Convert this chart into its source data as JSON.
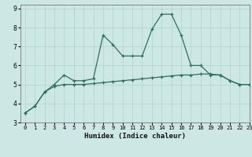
{
  "xlabel": "Humidex (Indice chaleur)",
  "xlim": [
    -0.5,
    23
  ],
  "ylim": [
    3,
    9.2
  ],
  "yticks": [
    3,
    4,
    5,
    6,
    7,
    8,
    9
  ],
  "xticks": [
    0,
    1,
    2,
    3,
    4,
    5,
    6,
    7,
    8,
    9,
    10,
    11,
    12,
    13,
    14,
    15,
    16,
    17,
    18,
    19,
    20,
    21,
    22,
    23
  ],
  "background_color": "#cde8e4",
  "grid_color": "#b0d8d0",
  "line_color": "#2e6e60",
  "line1_x": [
    0,
    1,
    2,
    3,
    4,
    5,
    6,
    7,
    8,
    9,
    10,
    11,
    12,
    13,
    14,
    15,
    16,
    17,
    18,
    19,
    20,
    21,
    22,
    23
  ],
  "line1_y": [
    3.5,
    3.85,
    4.6,
    5.0,
    5.5,
    5.2,
    5.2,
    5.3,
    7.6,
    7.1,
    6.5,
    6.5,
    6.5,
    7.9,
    8.7,
    8.7,
    7.6,
    6.0,
    6.0,
    5.5,
    5.5,
    5.2,
    5.0,
    5.0
  ],
  "line2_x": [
    0,
    1,
    2,
    3,
    4,
    5,
    6,
    7,
    8,
    9,
    10,
    11,
    12,
    13,
    14,
    15,
    16,
    17,
    18,
    19,
    20,
    21,
    22,
    23
  ],
  "line2_y": [
    3.5,
    3.85,
    4.6,
    4.9,
    5.0,
    5.0,
    5.0,
    5.05,
    5.1,
    5.15,
    5.2,
    5.25,
    5.3,
    5.35,
    5.4,
    5.45,
    5.5,
    5.5,
    5.55,
    5.55,
    5.5,
    5.2,
    5.0,
    5.0
  ]
}
